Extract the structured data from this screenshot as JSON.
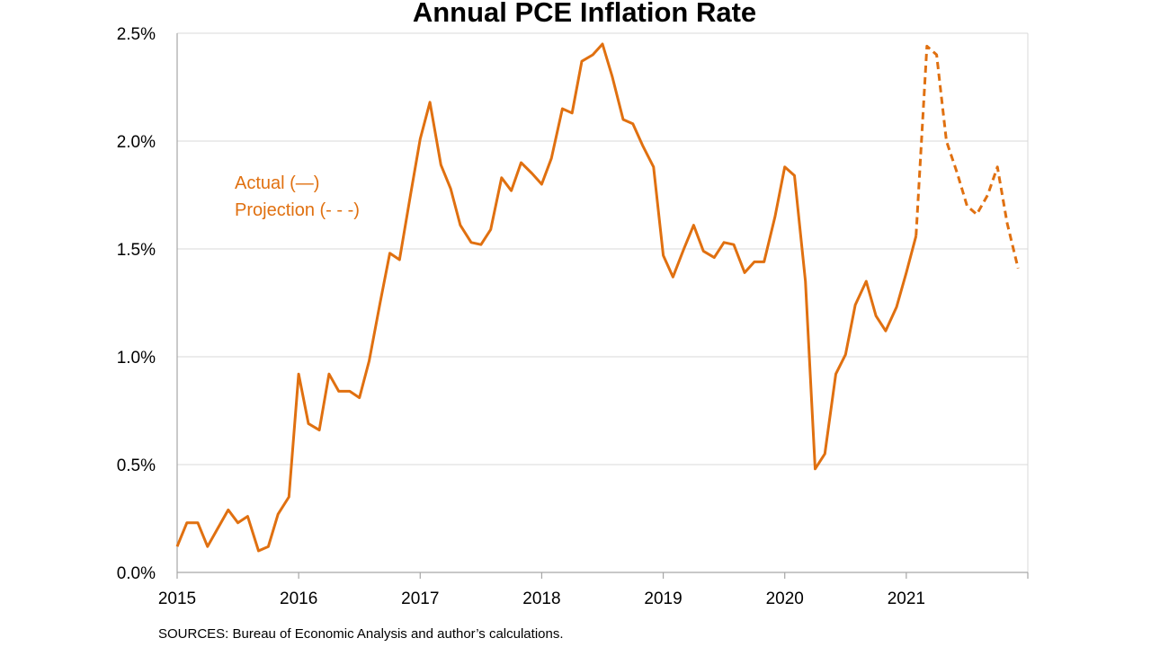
{
  "chart_data": {
    "type": "line",
    "title": "Annual PCE Inflation Rate",
    "xlabel": "",
    "ylabel": "",
    "ylim": [
      0,
      2.5
    ],
    "xlim": [
      2015,
      2022
    ],
    "grid": true,
    "y_tick_labels": [
      "0.0%",
      "0.5%",
      "1.0%",
      "1.5%",
      "2.0%",
      "2.5%"
    ],
    "x_tick_labels": [
      "2015",
      "2016",
      "2017",
      "2018",
      "2019",
      "2020",
      "2021"
    ],
    "series_color": "#E07010",
    "annotations": [
      "Actual (—)",
      "Projection (- - -)"
    ],
    "source": "SOURCES: Bureau of Economic Analysis and author’s calculations.",
    "series": [
      {
        "style": "solid",
        "x": [
          2015.0,
          2015.08,
          2015.17,
          2015.25,
          2015.33,
          2015.42,
          2015.5,
          2015.58,
          2015.67,
          2015.75,
          2015.83,
          2015.92,
          2016.0,
          2016.08,
          2016.17,
          2016.25,
          2016.33,
          2016.42,
          2016.5,
          2016.58,
          2016.67,
          2016.75,
          2016.83,
          2016.92,
          2017.0,
          2017.08,
          2017.17,
          2017.25,
          2017.33,
          2017.42,
          2017.5,
          2017.58,
          2017.67,
          2017.75,
          2017.83,
          2017.92,
          2018.0,
          2018.08,
          2018.17,
          2018.25,
          2018.33,
          2018.42,
          2018.5,
          2018.58,
          2018.67,
          2018.75,
          2018.83,
          2018.92,
          2019.0,
          2019.08,
          2019.17,
          2019.25,
          2019.33,
          2019.42,
          2019.5,
          2019.58,
          2019.67,
          2019.75,
          2019.83,
          2019.92,
          2020.0,
          2020.08,
          2020.17,
          2020.25,
          2020.33,
          2020.42,
          2020.5,
          2020.58,
          2020.67,
          2020.75,
          2020.83,
          2020.92,
          2021.0,
          2021.08
        ],
        "y": [
          0.12,
          0.23,
          0.23,
          0.12,
          0.2,
          0.29,
          0.23,
          0.26,
          0.1,
          0.12,
          0.27,
          0.35,
          0.92,
          0.69,
          0.66,
          0.92,
          0.84,
          0.84,
          0.81,
          0.98,
          1.25,
          1.48,
          1.45,
          1.75,
          2.01,
          2.18,
          1.89,
          1.78,
          1.61,
          1.53,
          1.52,
          1.59,
          1.83,
          1.77,
          1.9,
          1.85,
          1.8,
          1.92,
          2.15,
          2.13,
          2.37,
          2.4,
          2.45,
          2.3,
          2.1,
          2.08,
          1.98,
          1.88,
          1.47,
          1.37,
          1.5,
          1.61,
          1.49,
          1.46,
          1.53,
          1.52,
          1.39,
          1.44,
          1.44,
          1.65,
          1.88,
          1.84,
          1.35,
          0.48,
          0.55,
          0.92,
          1.01,
          1.24,
          1.35,
          1.19,
          1.12,
          1.23,
          1.39,
          1.56
        ]
      },
      {
        "style": "dashed",
        "x": [
          2021.08,
          2021.17,
          2021.25,
          2021.33,
          2021.42,
          2021.5,
          2021.58,
          2021.67,
          2021.75,
          2021.83,
          2021.92
        ],
        "y": [
          1.56,
          2.44,
          2.4,
          2.0,
          1.85,
          1.7,
          1.66,
          1.75,
          1.88,
          1.62,
          1.41
        ]
      }
    ]
  }
}
